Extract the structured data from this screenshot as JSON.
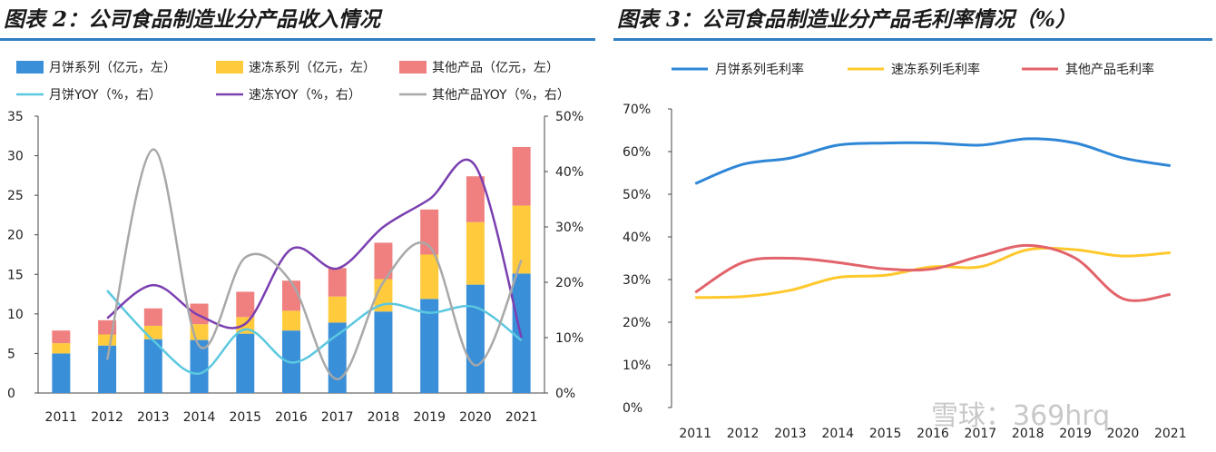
{
  "watermark": "雪球：369hrq",
  "chart_data": [
    {
      "type": "bar",
      "title": "图表 2：公司食品制造业分产品收入情况",
      "categories": [
        "2011",
        "2012",
        "2013",
        "2014",
        "2015",
        "2016",
        "2017",
        "2018",
        "2019",
        "2020",
        "2021"
      ],
      "stacked": true,
      "series": [
        {
          "name": "月饼系列（亿元，左）",
          "type": "bar",
          "axis": "left",
          "color": "#3a8fd9",
          "values": [
            5.0,
            6.0,
            6.8,
            6.7,
            7.5,
            7.9,
            8.9,
            10.3,
            11.9,
            13.7,
            15.1
          ]
        },
        {
          "name": "速冻系列（亿元，左）",
          "type": "bar",
          "axis": "left",
          "color": "#ffcb3d",
          "values": [
            1.3,
            1.4,
            1.7,
            2.0,
            2.1,
            2.5,
            3.3,
            4.1,
            5.6,
            7.9,
            8.6
          ]
        },
        {
          "name": "其他产品（亿元，左）",
          "type": "bar",
          "axis": "left",
          "color": "#f08080",
          "values": [
            1.6,
            1.8,
            2.2,
            2.6,
            3.2,
            3.8,
            3.6,
            4.6,
            5.7,
            5.8,
            7.4
          ]
        },
        {
          "name": "月饼YOY（%，右）",
          "type": "line",
          "axis": "right",
          "color": "#5bc8e0",
          "values": [
            null,
            18.5,
            9.5,
            3.5,
            11.5,
            5.5,
            10.5,
            16.0,
            14.5,
            15.5,
            9.5
          ]
        },
        {
          "name": "速冻YOY（%，右）",
          "type": "line",
          "axis": "right",
          "color": "#7a3fb0",
          "values": [
            null,
            13.5,
            19.5,
            14.0,
            12.5,
            26.0,
            22.5,
            30.0,
            35.0,
            41.0,
            10.0
          ]
        },
        {
          "name": "其他产品YOY（%，右）",
          "type": "line",
          "axis": "right",
          "color": "#a8a8a8",
          "values": [
            null,
            6.0,
            44.0,
            8.5,
            24.5,
            20.0,
            2.5,
            20.0,
            26.5,
            5.0,
            24.0
          ]
        }
      ],
      "ylim_left": [
        0,
        35
      ],
      "yticks_left": [
        "0",
        "5",
        "10",
        "15",
        "20",
        "25",
        "30",
        "35"
      ],
      "ylim_right": [
        0,
        50
      ],
      "yticks_right": [
        "0%",
        "10%",
        "20%",
        "30%",
        "40%",
        "50%"
      ],
      "legend": "top",
      "grid": false
    },
    {
      "type": "line",
      "title": "图表 3：公司食品制造业分产品毛利率情况（%）",
      "categories": [
        "2011",
        "2012",
        "2013",
        "2014",
        "2015",
        "2016",
        "2017",
        "2018",
        "2019",
        "2020",
        "2021"
      ],
      "series": [
        {
          "name": "月饼系列毛利率",
          "color": "#2e86d6",
          "values": [
            52.5,
            57.0,
            58.5,
            61.5,
            62.0,
            62.0,
            61.5,
            63.0,
            62.0,
            58.5,
            56.7
          ]
        },
        {
          "name": "速冻系列毛利率",
          "color": "#ffc82c",
          "values": [
            25.8,
            26.0,
            27.5,
            30.5,
            31.0,
            33.0,
            33.0,
            37.0,
            37.0,
            35.5,
            36.3
          ]
        },
        {
          "name": "其他产品毛利率",
          "color": "#e2636a",
          "values": [
            27.0,
            34.0,
            35.0,
            34.0,
            32.5,
            32.5,
            35.5,
            38.0,
            35.0,
            25.5,
            26.5
          ]
        }
      ],
      "ylim": [
        0,
        70
      ],
      "yticks": [
        "0%",
        "10%",
        "20%",
        "30%",
        "40%",
        "50%",
        "60%",
        "70%"
      ],
      "legend": "top",
      "grid": false
    }
  ]
}
